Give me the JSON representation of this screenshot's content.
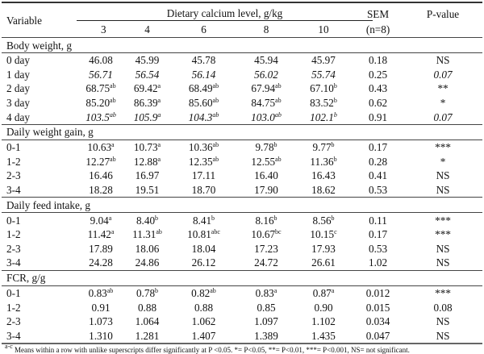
{
  "header": {
    "variable": "Variable",
    "group": "Dietary calcium level, g/kg",
    "levels": [
      "3",
      "4",
      "6",
      "8",
      "10"
    ],
    "sem": "SEM",
    "sem_n": "(n=8)",
    "p": "P-value"
  },
  "sections": [
    {
      "title": "Body weight, g",
      "rows": [
        {
          "label": "0 day",
          "italic": false,
          "cells": [
            {
              "v": "46.08",
              "s": ""
            },
            {
              "v": "45.99",
              "s": ""
            },
            {
              "v": "45.78",
              "s": ""
            },
            {
              "v": "45.94",
              "s": ""
            },
            {
              "v": "45.97",
              "s": ""
            }
          ],
          "sem": "0.18",
          "p": "NS"
        },
        {
          "label": "1 day",
          "italic": true,
          "cells": [
            {
              "v": "56.71",
              "s": ""
            },
            {
              "v": "56.54",
              "s": ""
            },
            {
              "v": "56.14",
              "s": ""
            },
            {
              "v": "56.02",
              "s": ""
            },
            {
              "v": "55.74",
              "s": ""
            }
          ],
          "sem": "0.25",
          "p": "0.07"
        },
        {
          "label": "2 day",
          "italic": false,
          "cells": [
            {
              "v": "68.75",
              "s": "ab"
            },
            {
              "v": "69.42",
              "s": "a"
            },
            {
              "v": "68.49",
              "s": "ab"
            },
            {
              "v": "67.94",
              "s": "ab"
            },
            {
              "v": "67.10",
              "s": "b"
            }
          ],
          "sem": "0.43",
          "p": "**"
        },
        {
          "label": "3 day",
          "italic": false,
          "cells": [
            {
              "v": "85.20",
              "s": "ab"
            },
            {
              "v": "86.39",
              "s": "a"
            },
            {
              "v": "85.60",
              "s": "ab"
            },
            {
              "v": "84.75",
              "s": "ab"
            },
            {
              "v": "83.52",
              "s": "b"
            }
          ],
          "sem": "0.62",
          "p": "*"
        },
        {
          "label": "4 day",
          "italic": true,
          "cells": [
            {
              "v": "103.5",
              "s": "ab"
            },
            {
              "v": "105.9",
              "s": "a"
            },
            {
              "v": "104.3",
              "s": "ab"
            },
            {
              "v": "103.0",
              "s": "ab"
            },
            {
              "v": "102.1",
              "s": "b"
            }
          ],
          "sem": "0.91",
          "p": "0.07"
        }
      ]
    },
    {
      "title": "Daily weight gain, g",
      "rows": [
        {
          "label": "0-1",
          "italic": false,
          "cells": [
            {
              "v": "10.63",
              "s": "a"
            },
            {
              "v": "10.73",
              "s": "a"
            },
            {
              "v": "10.36",
              "s": "ab"
            },
            {
              "v": "9.78",
              "s": "b"
            },
            {
              "v": "9.77",
              "s": "b"
            }
          ],
          "sem": "0.17",
          "p": "***"
        },
        {
          "label": "1-2",
          "italic": false,
          "cells": [
            {
              "v": "12.27",
              "s": "ab"
            },
            {
              "v": "12.88",
              "s": "a"
            },
            {
              "v": "12.35",
              "s": "ab"
            },
            {
              "v": "12.55",
              "s": "ab"
            },
            {
              "v": "11.36",
              "s": "b"
            }
          ],
          "sem": "0.28",
          "p": "*"
        },
        {
          "label": "2-3",
          "italic": false,
          "cells": [
            {
              "v": "16.46",
              "s": ""
            },
            {
              "v": "16.97",
              "s": ""
            },
            {
              "v": "17.11",
              "s": ""
            },
            {
              "v": "16.40",
              "s": ""
            },
            {
              "v": "16.43",
              "s": ""
            }
          ],
          "sem": "0.41",
          "p": "NS"
        },
        {
          "label": "3-4",
          "italic": false,
          "cells": [
            {
              "v": "18.28",
              "s": ""
            },
            {
              "v": "19.51",
              "s": ""
            },
            {
              "v": "18.70",
              "s": ""
            },
            {
              "v": "17.90",
              "s": ""
            },
            {
              "v": "18.62",
              "s": ""
            }
          ],
          "sem": "0.53",
          "p": "NS"
        }
      ]
    },
    {
      "title": "Daily feed intake, g",
      "rows": [
        {
          "label": "0-1",
          "italic": false,
          "cells": [
            {
              "v": "9.04",
              "s": "a"
            },
            {
              "v": "8.40",
              "s": "b"
            },
            {
              "v": "8.41",
              "s": "b"
            },
            {
              "v": "8.16",
              "s": "b"
            },
            {
              "v": "8.56",
              "s": "b"
            }
          ],
          "sem": "0.11",
          "p": "***"
        },
        {
          "label": "1-2",
          "italic": false,
          "cells": [
            {
              "v": "11.42",
              "s": "a"
            },
            {
              "v": "11.31",
              "s": "ab"
            },
            {
              "v": "10.81",
              "s": "abc"
            },
            {
              "v": "10.67",
              "s": "bc"
            },
            {
              "v": "10.15",
              "s": "c"
            }
          ],
          "sem": "0.17",
          "p": "***"
        },
        {
          "label": "2-3",
          "italic": false,
          "cells": [
            {
              "v": "17.89",
              "s": ""
            },
            {
              "v": "18.06",
              "s": ""
            },
            {
              "v": "18.04",
              "s": ""
            },
            {
              "v": "17.23",
              "s": ""
            },
            {
              "v": "17.93",
              "s": ""
            }
          ],
          "sem": "0.53",
          "p": "NS"
        },
        {
          "label": "3-4",
          "italic": false,
          "cells": [
            {
              "v": "24.28",
              "s": ""
            },
            {
              "v": "24.86",
              "s": ""
            },
            {
              "v": "26.12",
              "s": ""
            },
            {
              "v": "24.72",
              "s": ""
            },
            {
              "v": "26.61",
              "s": ""
            }
          ],
          "sem": "1.02",
          "p": "NS"
        }
      ]
    },
    {
      "title": "FCR, g/g",
      "rows": [
        {
          "label": "0-1",
          "italic": false,
          "cells": [
            {
              "v": "0.83",
              "s": "ab"
            },
            {
              "v": "0.78",
              "s": "b"
            },
            {
              "v": "0.82",
              "s": "ab"
            },
            {
              "v": "0.83",
              "s": "a"
            },
            {
              "v": "0.87",
              "s": "a"
            }
          ],
          "sem": "0.012",
          "p": "***"
        },
        {
          "label": "1-2",
          "italic": false,
          "cells": [
            {
              "v": "0.91",
              "s": ""
            },
            {
              "v": "0.88",
              "s": ""
            },
            {
              "v": "0.88",
              "s": ""
            },
            {
              "v": "0.85",
              "s": ""
            },
            {
              "v": "0.90",
              "s": ""
            }
          ],
          "sem": "0.015",
          "p": "0.08"
        },
        {
          "label": "2-3",
          "italic": false,
          "cells": [
            {
              "v": "1.073",
              "s": ""
            },
            {
              "v": "1.064",
              "s": ""
            },
            {
              "v": "1.062",
              "s": ""
            },
            {
              "v": "1.097",
              "s": ""
            },
            {
              "v": "1.102",
              "s": ""
            }
          ],
          "sem": "0.034",
          "p": "NS"
        },
        {
          "label": "3-4",
          "italic": false,
          "cells": [
            {
              "v": "1.310",
              "s": ""
            },
            {
              "v": "1.281",
              "s": ""
            },
            {
              "v": "1.407",
              "s": ""
            },
            {
              "v": "1.389",
              "s": ""
            },
            {
              "v": "1.435",
              "s": ""
            }
          ],
          "sem": "0.047",
          "p": "NS"
        }
      ]
    }
  ],
  "footnote": {
    "sup": "a-c",
    "text": " Means within a row with unlike superscripts differ significantly at P <0.05. *= P<0.05, **= P<0.01, ***= P<0.001, NS= not significant."
  }
}
